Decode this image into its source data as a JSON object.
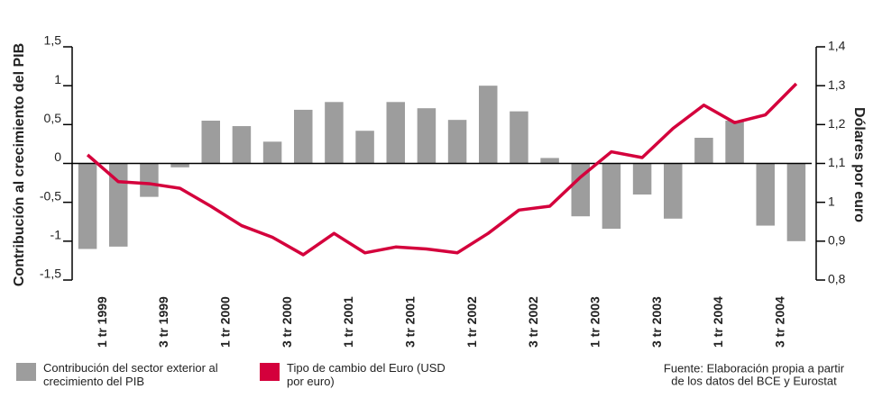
{
  "chart_data": {
    "type": "bar",
    "ylabel": "Contribución al crecimiento del PIB",
    "y2label": "Dólares por euro",
    "categories": [
      "1 tr 1999",
      null,
      "3 tr 1999",
      null,
      "1 tr 2000",
      null,
      "3 tr 2000",
      null,
      "1 tr 2001",
      null,
      "3 tr 2001",
      null,
      "1 tr 2002",
      null,
      "3 tr 2002",
      null,
      "1 tr 2003",
      null,
      "3 tr 2003",
      null,
      "1 tr 2004",
      null,
      "3 tr 2004",
      null
    ],
    "series": [
      {
        "name": "Contribución del sector exterior al crecimiento del PIB",
        "type": "bar",
        "color": "#9d9d9d",
        "values": [
          -1.1,
          -1.07,
          -0.43,
          -0.05,
          0.55,
          0.48,
          0.28,
          0.69,
          0.79,
          0.42,
          0.79,
          0.71,
          0.56,
          1.0,
          0.67,
          0.07,
          -0.68,
          -0.84,
          -0.4,
          -0.71,
          0.33,
          0.55,
          -0.8,
          -1.0
        ]
      },
      {
        "name": "Tipo de cambio del Euro (USD por euro)",
        "type": "line",
        "axis": "y2",
        "color": "#d4003c",
        "values": [
          1.122,
          1.053,
          1.048,
          1.036,
          0.99,
          0.94,
          0.91,
          0.865,
          0.92,
          0.87,
          0.885,
          0.88,
          0.87,
          0.92,
          0.98,
          0.99,
          1.065,
          1.13,
          1.115,
          1.19,
          1.25,
          1.205,
          1.225,
          1.305
        ]
      }
    ],
    "ylim": [
      -1.5,
      1.5
    ],
    "yticks": [
      {
        "value": 1.5,
        "label": "1,5"
      },
      1,
      {
        "value": 0.5,
        "label": "0,5"
      },
      0,
      {
        "value": -0.5,
        "label": "-0,5"
      },
      -1,
      {
        "value": -1.5,
        "label": "-1,5"
      }
    ],
    "y2lim": [
      0.8,
      1.4
    ],
    "y2ticks": [
      {
        "value": 1.4,
        "label": "1,4"
      },
      {
        "value": 1.3,
        "label": "1,3"
      },
      {
        "value": 1.2,
        "label": "1,2"
      },
      {
        "value": 1.1,
        "label": "1,1"
      },
      1,
      {
        "value": 0.9,
        "label": "0,9"
      },
      {
        "value": 0.8,
        "label": "0,8"
      }
    ],
    "source": [
      "Fuente: Elaboración  propia a partir",
      "de los datos del BCE y Eurostat"
    ]
  }
}
